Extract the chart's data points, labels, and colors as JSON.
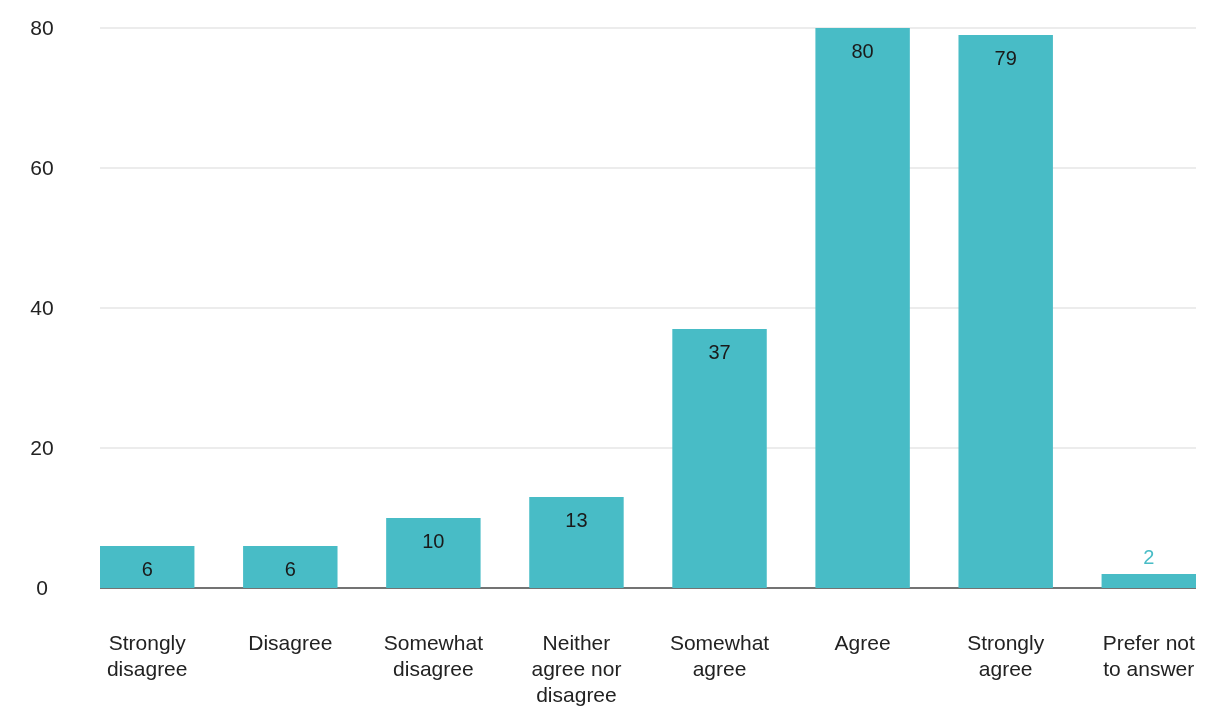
{
  "chart_data": {
    "type": "bar",
    "categories": [
      "Strongly disagree",
      "Disagree",
      "Somewhat disagree",
      "Neither agree nor disagree",
      "Somewhat agree",
      "Agree",
      "Strongly agree",
      "Prefer not to answer"
    ],
    "values": [
      6,
      6,
      10,
      13,
      37,
      80,
      79,
      2
    ],
    "color": "#48bcc6",
    "ylim": [
      0,
      80
    ],
    "yticks": [
      0,
      20,
      40,
      60,
      80
    ],
    "grid": "y",
    "data_labels": true
  }
}
